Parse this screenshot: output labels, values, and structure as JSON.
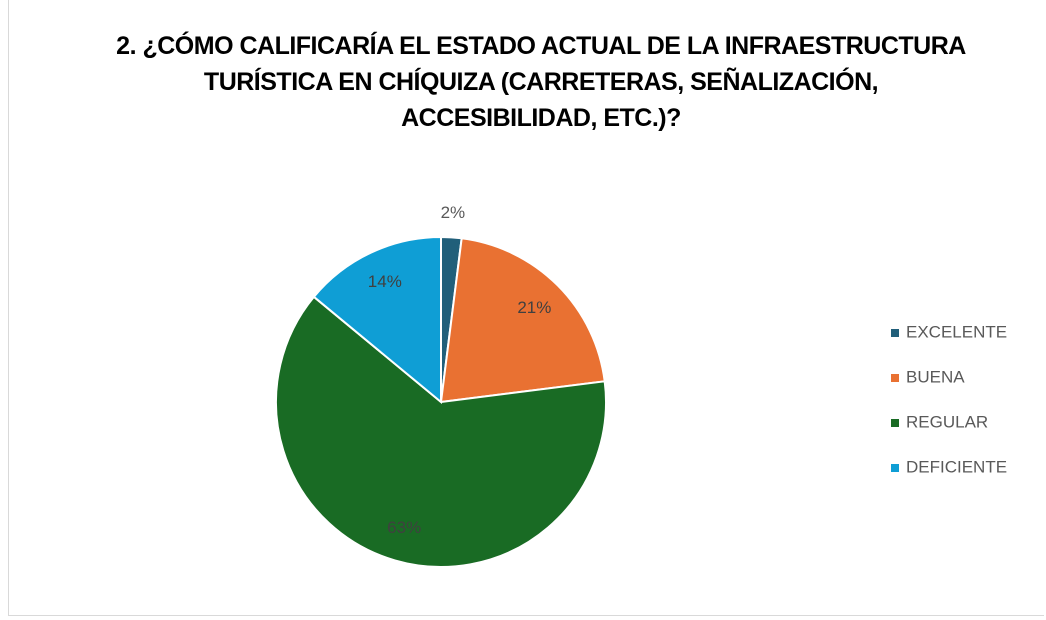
{
  "chart_data": {
    "type": "pie",
    "title": "2. ¿CÓMO CALIFICARÍA EL ESTADO ACTUAL DE LA INFRAESTRUCTURA TURÍSTICA EN CHÍQUIZA (CARRETERAS, SEÑALIZACIÓN, ACCESIBILIDAD, ETC.)?",
    "categories": [
      "EXCELENTE",
      "BUENA",
      "REGULAR",
      "DEFICIENTE"
    ],
    "values": [
      2,
      21,
      63,
      14
    ],
    "value_labels": [
      "2%",
      "21%",
      "63%",
      "14%"
    ],
    "colors": [
      "#215f7a",
      "#e97132",
      "#196b24",
      "#0f9ed5"
    ],
    "legend": "right"
  }
}
